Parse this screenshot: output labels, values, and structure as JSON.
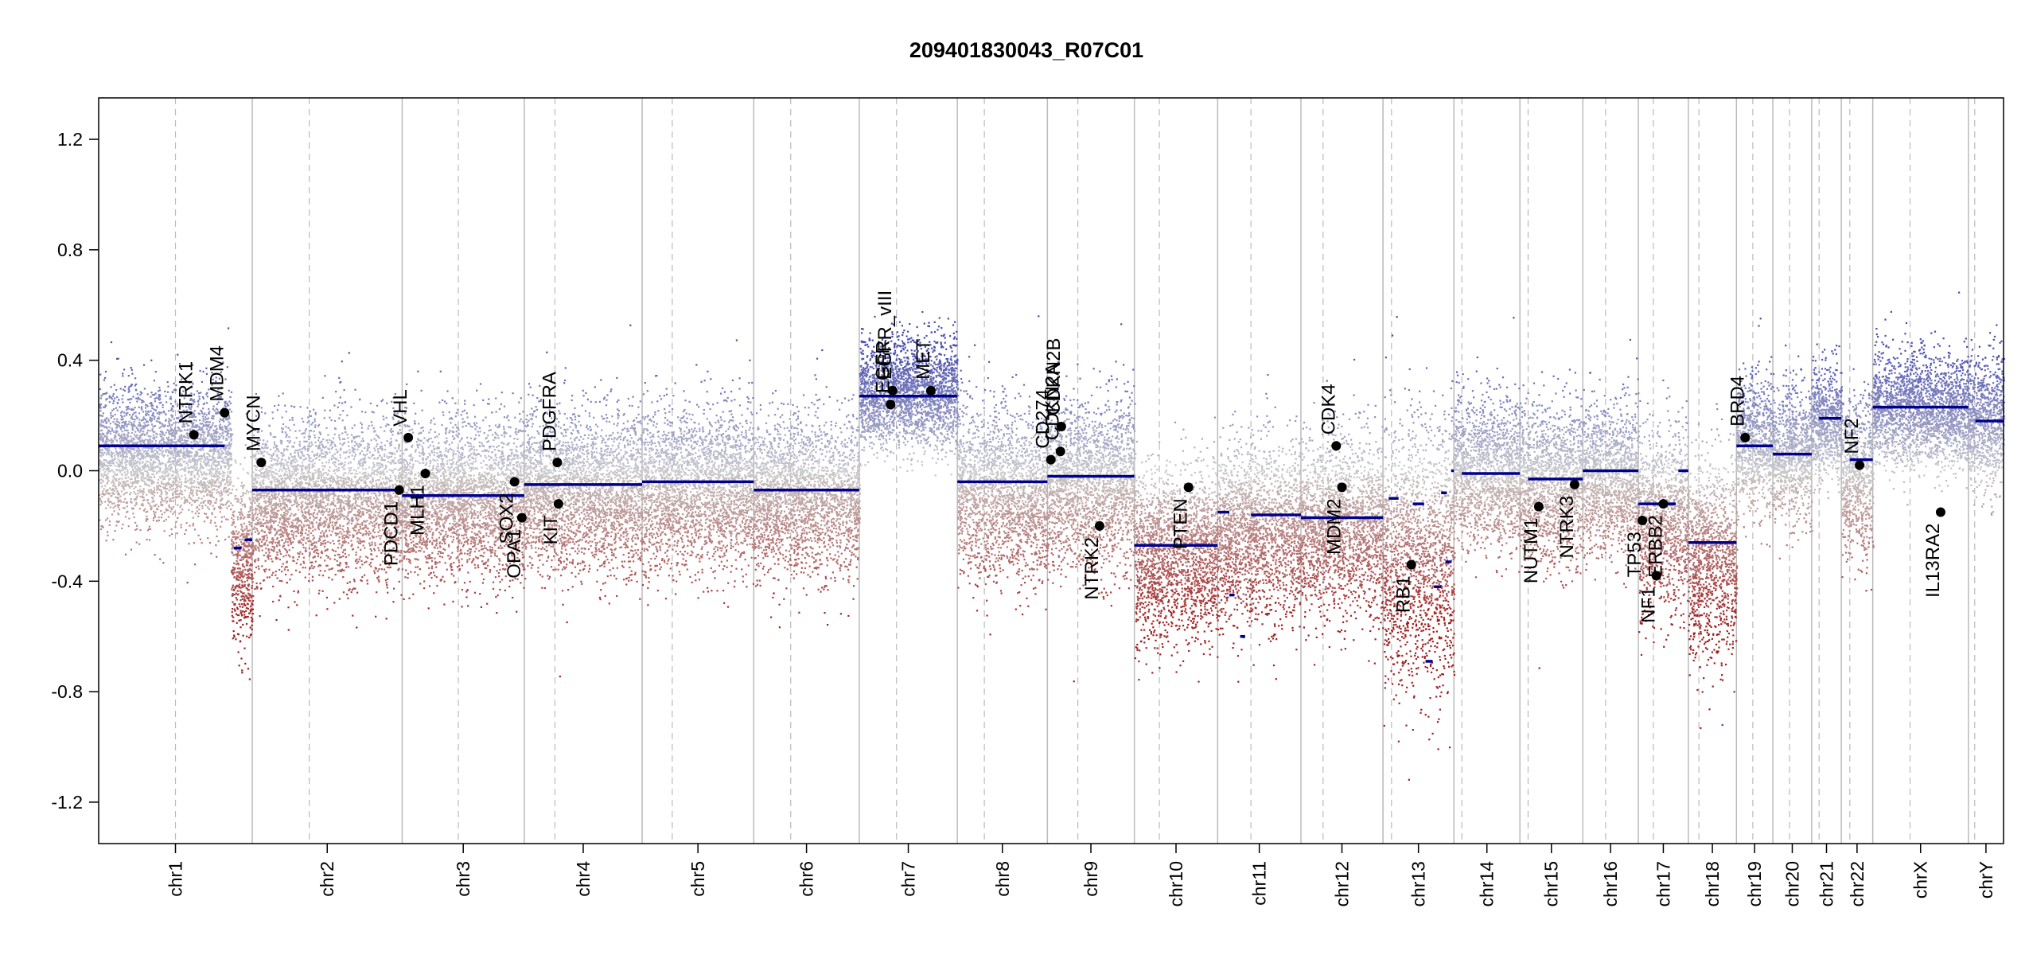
{
  "chart_data": {
    "type": "scatter",
    "title": "209401830043_R07C01",
    "xlabel": "",
    "ylabel": "",
    "ylim": [
      -1.35,
      1.35
    ],
    "yticks": [
      -1.2,
      -0.8,
      -0.4,
      0.0,
      0.4,
      0.8,
      1.2
    ],
    "ytick_labels": [
      "-1.2",
      "-0.8",
      "-0.4",
      "0.0",
      "0.4",
      "0.8",
      "1.2"
    ],
    "colors": {
      "gain": "#5a5fb0",
      "loss": "#a52a2a",
      "neutral": "#bdbdbd",
      "segment": "#00008b",
      "boundary": "#bbbbbb",
      "centromere": "#bbbbbb",
      "gene_point": "#000000"
    },
    "chromosomes": [
      {
        "name": "chr1",
        "size": 249,
        "cen": 0.5
      },
      {
        "name": "chr2",
        "size": 243,
        "cen": 0.38
      },
      {
        "name": "chr3",
        "size": 198,
        "cen": 0.46
      },
      {
        "name": "chr4",
        "size": 191,
        "cen": 0.26
      },
      {
        "name": "chr5",
        "size": 181,
        "cen": 0.27
      },
      {
        "name": "chr6",
        "size": 171,
        "cen": 0.35
      },
      {
        "name": "chr7",
        "size": 159,
        "cen": 0.38
      },
      {
        "name": "chr8",
        "size": 146,
        "cen": 0.3
      },
      {
        "name": "chr9",
        "size": 141,
        "cen": 0.35
      },
      {
        "name": "chr10",
        "size": 135,
        "cen": 0.3
      },
      {
        "name": "chr11",
        "size": 135,
        "cen": 0.4
      },
      {
        "name": "chr12",
        "size": 133,
        "cen": 0.27
      },
      {
        "name": "chr13",
        "size": 115,
        "cen": 0.12
      },
      {
        "name": "chr14",
        "size": 107,
        "cen": 0.12
      },
      {
        "name": "chr15",
        "size": 102,
        "cen": 0.13
      },
      {
        "name": "chr16",
        "size": 90,
        "cen": 0.41
      },
      {
        "name": "chr17",
        "size": 81,
        "cen": 0.3
      },
      {
        "name": "chr18",
        "size": 78,
        "cen": 0.22
      },
      {
        "name": "chr19",
        "size": 59,
        "cen": 0.45
      },
      {
        "name": "chr20",
        "size": 63,
        "cen": 0.43
      },
      {
        "name": "chr21",
        "size": 48,
        "cen": 0.25
      },
      {
        "name": "chr22",
        "size": 51,
        "cen": 0.27
      },
      {
        "name": "chrX",
        "size": 155,
        "cen": 0.39
      },
      {
        "name": "chrY",
        "size": 57,
        "cen": 0.18
      }
    ],
    "segments": [
      {
        "chr": "chr1",
        "start": 0.0,
        "end": 0.82,
        "y": 0.09
      },
      {
        "chr": "chr1",
        "start": 0.88,
        "end": 0.93,
        "y": -0.28
      },
      {
        "chr": "chr1",
        "start": 0.95,
        "end": 1.0,
        "y": -0.25
      },
      {
        "chr": "chr2",
        "start": 0.0,
        "end": 1.0,
        "y": -0.07
      },
      {
        "chr": "chr3",
        "start": 0.0,
        "end": 1.0,
        "y": -0.09
      },
      {
        "chr": "chr4",
        "start": 0.0,
        "end": 1.0,
        "y": -0.05
      },
      {
        "chr": "chr5",
        "start": 0.0,
        "end": 1.0,
        "y": -0.04
      },
      {
        "chr": "chr6",
        "start": 0.0,
        "end": 1.0,
        "y": -0.07
      },
      {
        "chr": "chr7",
        "start": 0.0,
        "end": 1.0,
        "y": 0.27
      },
      {
        "chr": "chr8",
        "start": 0.0,
        "end": 1.0,
        "y": -0.04
      },
      {
        "chr": "chr9",
        "start": 0.0,
        "end": 1.0,
        "y": -0.02
      },
      {
        "chr": "chr10",
        "start": 0.0,
        "end": 1.0,
        "y": -0.27
      },
      {
        "chr": "chr11",
        "start": 0.0,
        "end": 0.14,
        "y": -0.15
      },
      {
        "chr": "chr11",
        "start": 0.14,
        "end": 0.2,
        "y": -0.45
      },
      {
        "chr": "chr11",
        "start": 0.27,
        "end": 0.33,
        "y": -0.6
      },
      {
        "chr": "chr11",
        "start": 0.4,
        "end": 1.0,
        "y": -0.16
      },
      {
        "chr": "chr12",
        "start": 0.0,
        "end": 1.0,
        "y": -0.17
      },
      {
        "chr": "chr13",
        "start": 0.08,
        "end": 0.22,
        "y": -0.1
      },
      {
        "chr": "chr13",
        "start": 0.42,
        "end": 0.58,
        "y": -0.12
      },
      {
        "chr": "chr13",
        "start": 0.6,
        "end": 0.7,
        "y": -0.69
      },
      {
        "chr": "chr13",
        "start": 0.72,
        "end": 0.82,
        "y": -0.42
      },
      {
        "chr": "chr13",
        "start": 0.82,
        "end": 0.9,
        "y": -0.08
      },
      {
        "chr": "chr13",
        "start": 0.88,
        "end": 0.96,
        "y": -0.33
      },
      {
        "chr": "chr13",
        "start": 0.96,
        "end": 1.0,
        "y": 0.0
      },
      {
        "chr": "chr14",
        "start": 0.12,
        "end": 1.0,
        "y": -0.01
      },
      {
        "chr": "chr15",
        "start": 0.13,
        "end": 1.0,
        "y": -0.03
      },
      {
        "chr": "chr16",
        "start": 0.0,
        "end": 1.0,
        "y": 0.0
      },
      {
        "chr": "chr17",
        "start": 0.0,
        "end": 0.75,
        "y": -0.12
      },
      {
        "chr": "chr17",
        "start": 0.8,
        "end": 1.0,
        "y": 0.0
      },
      {
        "chr": "chr18",
        "start": 0.0,
        "end": 1.0,
        "y": -0.26
      },
      {
        "chr": "chr19",
        "start": 0.0,
        "end": 1.0,
        "y": 0.09
      },
      {
        "chr": "chr20",
        "start": 0.0,
        "end": 1.0,
        "y": 0.06
      },
      {
        "chr": "chr21",
        "start": 0.25,
        "end": 1.0,
        "y": 0.19
      },
      {
        "chr": "chr22",
        "start": 0.27,
        "end": 1.0,
        "y": 0.04
      },
      {
        "chr": "chrX",
        "start": 0.0,
        "end": 1.0,
        "y": 0.23
      },
      {
        "chr": "chrY",
        "start": 0.2,
        "end": 1.0,
        "y": 0.18
      }
    ],
    "genes": [
      {
        "name": "NTRK1",
        "chr": "chr1",
        "pos": 0.62,
        "value": 0.13,
        "label_side": "above"
      },
      {
        "name": "MDM4",
        "chr": "chr1",
        "pos": 0.82,
        "value": 0.21,
        "label_side": "above"
      },
      {
        "name": "MYCN",
        "chr": "chr2",
        "pos": 0.06,
        "value": 0.03,
        "label_side": "above"
      },
      {
        "name": "VHL",
        "chr": "chr3",
        "pos": 0.05,
        "value": 0.12,
        "label_side": "above"
      },
      {
        "name": "PDCD1",
        "chr": "chr2",
        "pos": 0.98,
        "value": -0.07,
        "label_side": "below"
      },
      {
        "name": "MLH1",
        "chr": "chr3",
        "pos": 0.19,
        "value": -0.01,
        "label_side": "below"
      },
      {
        "name": "SOX2",
        "chr": "chr3",
        "pos": 0.92,
        "value": -0.04,
        "label_side": "below"
      },
      {
        "name": "OPA1",
        "chr": "chr3",
        "pos": 0.98,
        "value": -0.17,
        "label_side": "below"
      },
      {
        "name": "PDGFRA",
        "chr": "chr4",
        "pos": 0.28,
        "value": 0.03,
        "label_side": "above"
      },
      {
        "name": "KIT",
        "chr": "chr4",
        "pos": 0.29,
        "value": -0.12,
        "label_side": "below"
      },
      {
        "name": "EGFR",
        "chr": "chr7",
        "pos": 0.32,
        "value": 0.24,
        "label_side": "above"
      },
      {
        "name": "EGFR_vIII",
        "chr": "chr7",
        "pos": 0.34,
        "value": 0.29,
        "label_side": "above"
      },
      {
        "name": "MET",
        "chr": "chr7",
        "pos": 0.73,
        "value": 0.29,
        "label_side": "above"
      },
      {
        "name": "CD274",
        "chr": "chr9",
        "pos": 0.04,
        "value": 0.04,
        "label_side": "above"
      },
      {
        "name": "CDKN2A",
        "chr": "chr9",
        "pos": 0.15,
        "value": 0.07,
        "label_side": "above"
      },
      {
        "name": "CDKN2B",
        "chr": "chr9",
        "pos": 0.16,
        "value": 0.16,
        "label_side": "above"
      },
      {
        "name": "NTRK2",
        "chr": "chr9",
        "pos": 0.6,
        "value": -0.2,
        "label_side": "below"
      },
      {
        "name": "PTEN",
        "chr": "chr10",
        "pos": 0.65,
        "value": -0.06,
        "label_side": "below"
      },
      {
        "name": "CDK4",
        "chr": "chr12",
        "pos": 0.43,
        "value": 0.09,
        "label_side": "above"
      },
      {
        "name": "MDM2",
        "chr": "chr12",
        "pos": 0.5,
        "value": -0.06,
        "label_side": "below"
      },
      {
        "name": "RB1",
        "chr": "chr13",
        "pos": 0.4,
        "value": -0.34,
        "label_side": "below"
      },
      {
        "name": "NUTM1",
        "chr": "chr15",
        "pos": 0.3,
        "value": -0.13,
        "label_side": "below"
      },
      {
        "name": "NTRK3",
        "chr": "chr15",
        "pos": 0.87,
        "value": -0.05,
        "label_side": "below"
      },
      {
        "name": "TP53",
        "chr": "chr17",
        "pos": 0.08,
        "value": -0.18,
        "label_side": "below"
      },
      {
        "name": "NF1",
        "chr": "chr17",
        "pos": 0.36,
        "value": -0.38,
        "label_side": "below"
      },
      {
        "name": "ERBB2",
        "chr": "chr17",
        "pos": 0.5,
        "value": -0.12,
        "label_side": "below"
      },
      {
        "name": "BRD4",
        "chr": "chr19",
        "pos": 0.24,
        "value": 0.12,
        "label_side": "above"
      },
      {
        "name": "NF2",
        "chr": "chr22",
        "pos": 0.58,
        "value": 0.02,
        "label_side": "above"
      },
      {
        "name": "IL13RA2",
        "chrom_note": "",
        "chr": "chrX",
        "pos": 0.71,
        "value": -0.15,
        "label_side": "below"
      }
    ],
    "noise_profile": [
      {
        "chr": "chr1",
        "mu": 0.06,
        "sd": 0.12,
        "tail": [
          {
            "from": 0.86,
            "to": 1.0,
            "mu": -0.32,
            "sd": 0.16
          }
        ]
      },
      {
        "chr": "chr2",
        "mu": -0.1,
        "sd": 0.14
      },
      {
        "chr": "chr3",
        "mu": -0.1,
        "sd": 0.14
      },
      {
        "chr": "chr4",
        "mu": -0.07,
        "sd": 0.14
      },
      {
        "chr": "chr5",
        "mu": -0.06,
        "sd": 0.14
      },
      {
        "chr": "chr6",
        "mu": -0.09,
        "sd": 0.14
      },
      {
        "chr": "chr7",
        "mu": 0.28,
        "sd": 0.1
      },
      {
        "chr": "chr8",
        "mu": -0.08,
        "sd": 0.15
      },
      {
        "chr": "chr9",
        "mu": -0.04,
        "sd": 0.15
      },
      {
        "chr": "chr10",
        "mu": -0.3,
        "sd": 0.15
      },
      {
        "chr": "chr11",
        "mu": -0.22,
        "sd": 0.16
      },
      {
        "chr": "chr12",
        "mu": -0.2,
        "sd": 0.16
      },
      {
        "chr": "chr13",
        "mu": -0.3,
        "sd": 0.24
      },
      {
        "chr": "chr14",
        "mu": 0.0,
        "sd": 0.13
      },
      {
        "chr": "chr15",
        "mu": -0.04,
        "sd": 0.14
      },
      {
        "chr": "chr16",
        "mu": -0.02,
        "sd": 0.13
      },
      {
        "chr": "chr17",
        "mu": -0.18,
        "sd": 0.16
      },
      {
        "chr": "chr18",
        "mu": -0.32,
        "sd": 0.18
      },
      {
        "chr": "chr19",
        "mu": 0.1,
        "sd": 0.12
      },
      {
        "chr": "chr20",
        "mu": 0.06,
        "sd": 0.12
      },
      {
        "chr": "chr21",
        "mu": 0.18,
        "sd": 0.1
      },
      {
        "chr": "chr22",
        "mu": -0.02,
        "sd": 0.14
      },
      {
        "chr": "chrX",
        "mu": 0.22,
        "sd": 0.1
      },
      {
        "chr": "chrY",
        "mu": 0.18,
        "sd": 0.12
      }
    ]
  }
}
